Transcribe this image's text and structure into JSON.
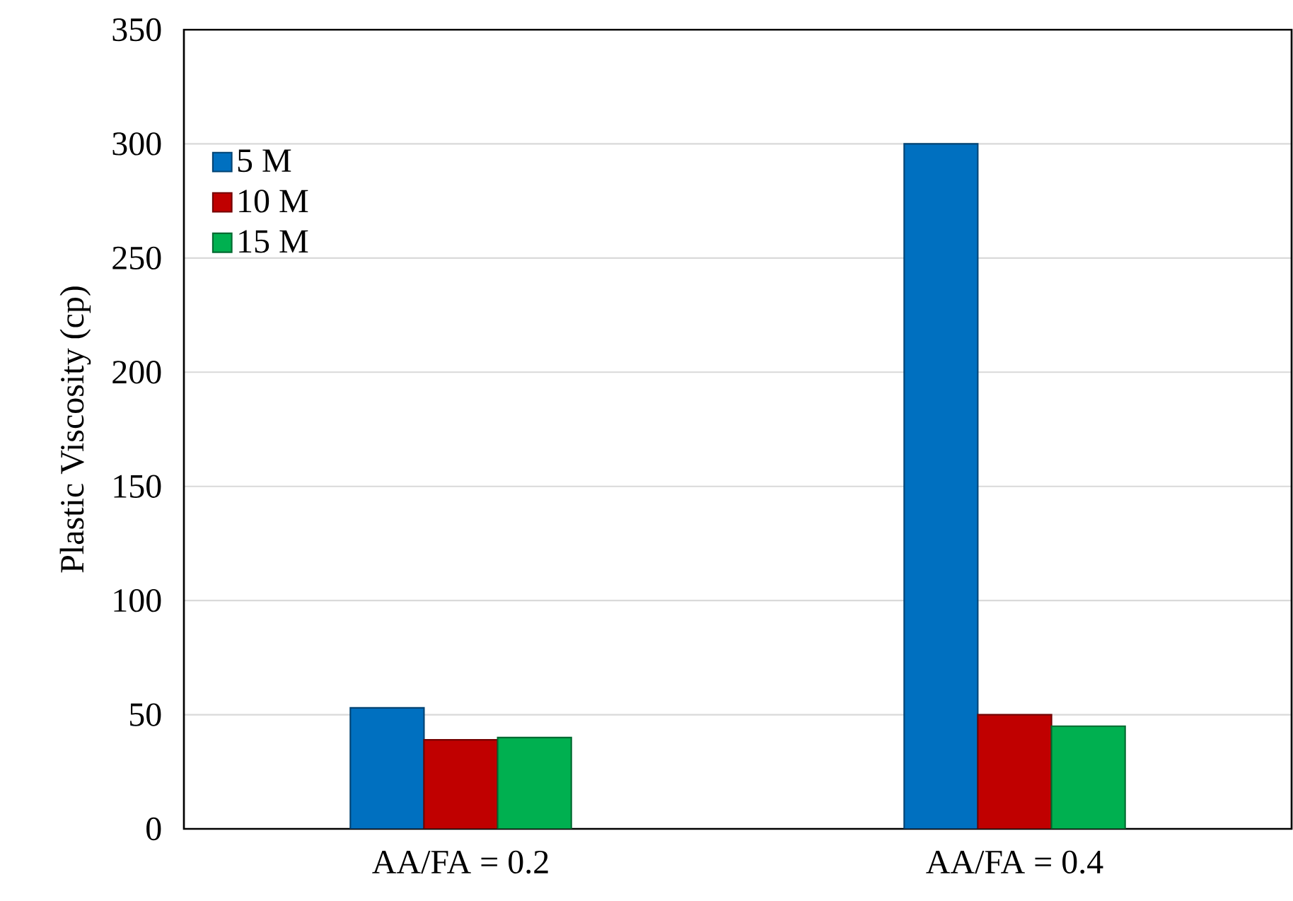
{
  "chart_data": {
    "type": "bar",
    "ylabel": "Plastic Viscosity (cp)",
    "categories": [
      "AA/FA = 0.2",
      "AA/FA = 0.4"
    ],
    "series": [
      {
        "name": "5 M",
        "color": "#0070c0",
        "values": [
          53,
          300
        ]
      },
      {
        "name": "10 M",
        "color": "#c00000",
        "values": [
          39,
          50
        ]
      },
      {
        "name": "15 M",
        "color": "#00b050",
        "values": [
          40,
          45
        ]
      }
    ],
    "ylim": [
      0,
      350
    ],
    "yticks": [
      0,
      50,
      100,
      150,
      200,
      250,
      300,
      350
    ],
    "grid": "y",
    "legend": "top left"
  }
}
